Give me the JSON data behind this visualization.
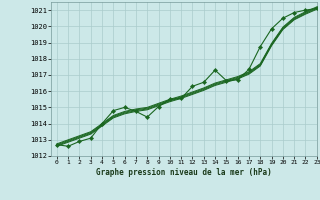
{
  "title": "Graphe pression niveau de la mer (hPa)",
  "bg_color": "#cce8e8",
  "grid_color": "#aacccc",
  "line_color": "#1a6620",
  "xlim": [
    -0.5,
    23
  ],
  "ylim": [
    1012.0,
    1021.5
  ],
  "xticks": [
    0,
    1,
    2,
    3,
    4,
    5,
    6,
    7,
    8,
    9,
    10,
    11,
    12,
    13,
    14,
    15,
    16,
    17,
    18,
    19,
    20,
    21,
    22,
    23
  ],
  "yticks": [
    1012,
    1013,
    1014,
    1015,
    1016,
    1017,
    1018,
    1019,
    1020,
    1021
  ],
  "hours": [
    0,
    1,
    2,
    3,
    4,
    5,
    6,
    7,
    8,
    9,
    10,
    11,
    12,
    13,
    14,
    15,
    16,
    17,
    18,
    19,
    20,
    21,
    22,
    23
  ],
  "trend1": [
    1012.6,
    1012.85,
    1013.1,
    1013.35,
    1013.85,
    1014.35,
    1014.6,
    1014.75,
    1014.85,
    1015.1,
    1015.35,
    1015.55,
    1015.8,
    1016.05,
    1016.35,
    1016.55,
    1016.75,
    1017.05,
    1017.55,
    1018.8,
    1019.8,
    1020.4,
    1020.75,
    1021.05
  ],
  "trend2": [
    1012.65,
    1012.9,
    1013.15,
    1013.4,
    1013.9,
    1014.4,
    1014.65,
    1014.8,
    1014.9,
    1015.15,
    1015.4,
    1015.6,
    1015.85,
    1016.1,
    1016.4,
    1016.6,
    1016.8,
    1017.1,
    1017.6,
    1018.85,
    1019.85,
    1020.45,
    1020.8,
    1021.1
  ],
  "trend3": [
    1012.7,
    1012.95,
    1013.2,
    1013.45,
    1013.95,
    1014.45,
    1014.7,
    1014.85,
    1014.95,
    1015.2,
    1015.45,
    1015.65,
    1015.9,
    1016.15,
    1016.45,
    1016.65,
    1016.85,
    1017.15,
    1017.65,
    1018.9,
    1019.9,
    1020.5,
    1020.85,
    1021.15
  ],
  "trend4": [
    1012.75,
    1013.0,
    1013.25,
    1013.5,
    1014.0,
    1014.5,
    1014.75,
    1014.9,
    1015.0,
    1015.25,
    1015.5,
    1015.7,
    1015.95,
    1016.2,
    1016.5,
    1016.7,
    1016.9,
    1017.2,
    1017.7,
    1018.95,
    1019.95,
    1020.55,
    1020.9,
    1021.2
  ],
  "meas_x": [
    0,
    1,
    2,
    3,
    4,
    5,
    6,
    7,
    8,
    9,
    10,
    11,
    12,
    13,
    14,
    15,
    16,
    17,
    18,
    19,
    20,
    21,
    22,
    23
  ],
  "meas_y": [
    1012.7,
    1012.6,
    1012.9,
    1013.1,
    1014.0,
    1014.8,
    1015.0,
    1014.75,
    1014.4,
    1015.05,
    1015.5,
    1015.55,
    1016.3,
    1016.55,
    1017.3,
    1016.65,
    1016.7,
    1017.35,
    1018.75,
    1019.85,
    1020.5,
    1020.85,
    1021.0,
    1021.1
  ]
}
